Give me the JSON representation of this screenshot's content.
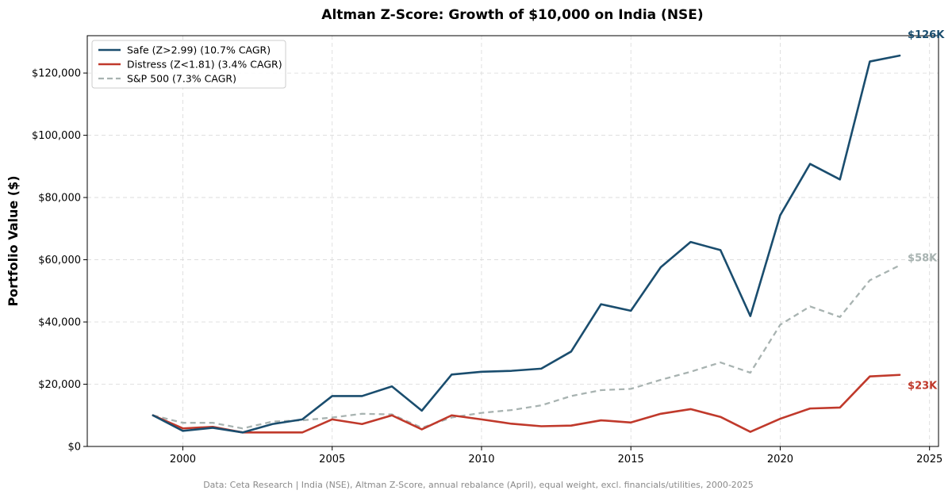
{
  "chart_data": {
    "type": "line",
    "title": "Altman Z-Score: Growth of $10,000 on India (NSE)",
    "xlabel": "",
    "ylabel": "Portfolio Value ($)",
    "xlim": [
      1996.8,
      2025.3
    ],
    "ylim": [
      0,
      132000
    ],
    "x_ticks": [
      2000,
      2005,
      2010,
      2015,
      2020,
      2025
    ],
    "y_ticks": [
      0,
      20000,
      40000,
      60000,
      80000,
      100000,
      120000
    ],
    "y_tick_labels": [
      "$0",
      "$20,000",
      "$40,000",
      "$60,000",
      "$80,000",
      "$100,000",
      "$120,000"
    ],
    "grid": true,
    "legend_position": "top-left",
    "x": [
      1999,
      2000,
      2001,
      2002,
      2003,
      2004,
      2005,
      2006,
      2007,
      2008,
      2009,
      2010,
      2011,
      2012,
      2013,
      2014,
      2015,
      2016,
      2017,
      2018,
      2019,
      2020,
      2021,
      2022,
      2023,
      2024
    ],
    "series": [
      {
        "name": "Safe (Z>2.99) (10.7% CAGR)",
        "color": "#1a4d6e",
        "style": "solid",
        "end_label": "$126K",
        "values": [
          10000,
          5000,
          6000,
          4500,
          7200,
          8700,
          16200,
          16200,
          19300,
          11500,
          23100,
          24000,
          24300,
          25000,
          30500,
          45700,
          43600,
          57600,
          65700,
          63100,
          41900,
          74300,
          90800,
          85800,
          123700,
          125600
        ]
      },
      {
        "name": "Distress (Z<1.81) (3.4% CAGR)",
        "color": "#c0392b",
        "style": "solid",
        "end_label": "$23K",
        "values": [
          10000,
          5800,
          6300,
          4500,
          4500,
          4500,
          8700,
          7200,
          10000,
          5500,
          10000,
          8700,
          7300,
          6500,
          6700,
          8400,
          7700,
          10500,
          12000,
          9500,
          4700,
          8900,
          12200,
          12500,
          22500,
          23000
        ]
      },
      {
        "name": "S&P 500 (7.3% CAGR)",
        "color": "#a8b3b1",
        "style": "dashed",
        "end_label": "$58K",
        "values": [
          10000,
          7600,
          7600,
          5800,
          8000,
          8400,
          9300,
          10500,
          10300,
          6000,
          9300,
          10800,
          11700,
          13200,
          16200,
          18100,
          18500,
          21400,
          24000,
          27000,
          23700,
          39100,
          45000,
          41600,
          53400,
          58200
        ]
      }
    ],
    "footnote": "Data: Ceta Research | India (NSE), Altman Z-Score, annual rebalance (April), equal weight, excl. financials/utilities, 2000-2025"
  }
}
